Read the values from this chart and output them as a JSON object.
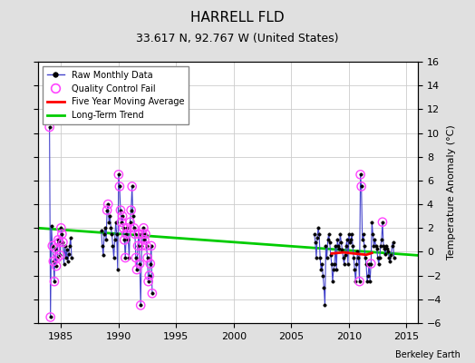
{
  "title": "HARRELL FLD",
  "subtitle": "33.617 N, 92.767 W (United States)",
  "attribution": "Berkeley Earth",
  "ylabel": "Temperature Anomaly (°C)",
  "xlim": [
    1983.0,
    2016.0
  ],
  "ylim": [
    -6,
    16
  ],
  "yticks": [
    -6,
    -4,
    -2,
    0,
    2,
    4,
    6,
    8,
    10,
    12,
    14,
    16
  ],
  "xticks": [
    1985,
    1990,
    1995,
    2000,
    2005,
    2010,
    2015
  ],
  "bg_color": "#e0e0e0",
  "plot_bg_color": "#ffffff",
  "grid_color": "#cccccc",
  "raw_color": "#4444cc",
  "qc_color": "#ff44ff",
  "ma_color": "#ff0000",
  "trend_color": "#00cc00",
  "raw_data": [
    [
      1984.0,
      10.5
    ],
    [
      1984.083,
      -5.5
    ],
    [
      1984.167,
      2.2
    ],
    [
      1984.25,
      0.5
    ],
    [
      1984.333,
      -0.8
    ],
    [
      1984.417,
      -2.5
    ],
    [
      1984.5,
      0.3
    ],
    [
      1984.583,
      -1.2
    ],
    [
      1984.667,
      -0.5
    ],
    [
      1984.75,
      1.0
    ],
    [
      1984.833,
      0.8
    ],
    [
      1984.917,
      -0.3
    ],
    [
      1985.0,
      2.0
    ],
    [
      1985.083,
      1.5
    ],
    [
      1985.167,
      0.8
    ],
    [
      1985.25,
      -1.0
    ],
    [
      1985.333,
      0.5
    ],
    [
      1985.417,
      -0.5
    ],
    [
      1985.5,
      0.2
    ],
    [
      1985.583,
      -0.8
    ],
    [
      1985.667,
      -0.2
    ],
    [
      1985.75,
      0.5
    ],
    [
      1985.833,
      1.2
    ],
    [
      1985.917,
      -0.5
    ],
    [
      1988.5,
      1.8
    ],
    [
      1988.583,
      0.5
    ],
    [
      1988.667,
      -0.3
    ],
    [
      1988.75,
      1.5
    ],
    [
      1988.833,
      2.0
    ],
    [
      1988.917,
      1.0
    ],
    [
      1989.0,
      3.5
    ],
    [
      1989.083,
      4.0
    ],
    [
      1989.167,
      2.5
    ],
    [
      1989.25,
      3.0
    ],
    [
      1989.333,
      2.0
    ],
    [
      1989.417,
      1.5
    ],
    [
      1989.5,
      0.5
    ],
    [
      1989.583,
      -0.5
    ],
    [
      1989.667,
      1.0
    ],
    [
      1989.75,
      2.5
    ],
    [
      1989.833,
      1.5
    ],
    [
      1989.917,
      -1.5
    ],
    [
      1990.0,
      6.5
    ],
    [
      1990.083,
      5.5
    ],
    [
      1990.167,
      3.5
    ],
    [
      1990.25,
      2.5
    ],
    [
      1990.333,
      3.0
    ],
    [
      1990.417,
      2.0
    ],
    [
      1990.5,
      1.0
    ],
    [
      1990.583,
      -0.5
    ],
    [
      1990.667,
      1.5
    ],
    [
      1990.75,
      2.0
    ],
    [
      1990.833,
      1.0
    ],
    [
      1990.917,
      -0.5
    ],
    [
      1991.0,
      2.5
    ],
    [
      1991.083,
      3.5
    ],
    [
      1991.167,
      5.5
    ],
    [
      1991.25,
      3.0
    ],
    [
      1991.333,
      2.0
    ],
    [
      1991.417,
      1.5
    ],
    [
      1991.5,
      -0.5
    ],
    [
      1991.583,
      -1.5
    ],
    [
      1991.667,
      0.5
    ],
    [
      1991.75,
      1.5
    ],
    [
      1991.833,
      -1.0
    ],
    [
      1991.917,
      -4.5
    ],
    [
      1992.0,
      0.5
    ],
    [
      1992.083,
      1.5
    ],
    [
      1992.167,
      2.0
    ],
    [
      1992.25,
      1.0
    ],
    [
      1992.333,
      1.5
    ],
    [
      1992.417,
      0.5
    ],
    [
      1992.5,
      -0.5
    ],
    [
      1992.583,
      -2.5
    ],
    [
      1992.667,
      -2.0
    ],
    [
      1992.75,
      -1.0
    ],
    [
      1992.833,
      0.5
    ],
    [
      1992.917,
      -3.5
    ],
    [
      2007.0,
      1.5
    ],
    [
      2007.083,
      0.8
    ],
    [
      2007.167,
      -0.5
    ],
    [
      2007.25,
      1.2
    ],
    [
      2007.333,
      2.0
    ],
    [
      2007.417,
      1.5
    ],
    [
      2007.5,
      -0.5
    ],
    [
      2007.583,
      -1.5
    ],
    [
      2007.667,
      -1.0
    ],
    [
      2007.75,
      -2.0
    ],
    [
      2007.833,
      -3.0
    ],
    [
      2007.917,
      -4.5
    ],
    [
      2008.0,
      0.5
    ],
    [
      2008.083,
      -0.5
    ],
    [
      2008.167,
      1.0
    ],
    [
      2008.25,
      1.5
    ],
    [
      2008.333,
      0.8
    ],
    [
      2008.417,
      -0.3
    ],
    [
      2008.5,
      -1.0
    ],
    [
      2008.583,
      -2.5
    ],
    [
      2008.667,
      -1.5
    ],
    [
      2008.75,
      -1.0
    ],
    [
      2008.833,
      0.5
    ],
    [
      2008.917,
      -1.5
    ],
    [
      2009.0,
      1.0
    ],
    [
      2009.083,
      0.5
    ],
    [
      2009.167,
      0.3
    ],
    [
      2009.25,
      1.5
    ],
    [
      2009.333,
      0.8
    ],
    [
      2009.417,
      0.2
    ],
    [
      2009.5,
      -0.5
    ],
    [
      2009.583,
      -1.0
    ],
    [
      2009.667,
      -0.3
    ],
    [
      2009.75,
      0.5
    ],
    [
      2009.833,
      1.0
    ],
    [
      2009.917,
      -1.0
    ],
    [
      2010.0,
      1.5
    ],
    [
      2010.083,
      0.8
    ],
    [
      2010.167,
      1.0
    ],
    [
      2010.25,
      1.5
    ],
    [
      2010.333,
      0.5
    ],
    [
      2010.417,
      -0.5
    ],
    [
      2010.5,
      -1.5
    ],
    [
      2010.583,
      -2.5
    ],
    [
      2010.667,
      -1.0
    ],
    [
      2010.75,
      0.0
    ],
    [
      2010.833,
      -0.5
    ],
    [
      2010.917,
      -2.5
    ],
    [
      2011.0,
      6.5
    ],
    [
      2011.083,
      5.5
    ],
    [
      2011.167,
      1.0
    ],
    [
      2011.25,
      1.5
    ],
    [
      2011.333,
      0.5
    ],
    [
      2011.417,
      -0.5
    ],
    [
      2011.5,
      -1.0
    ],
    [
      2011.583,
      -2.5
    ],
    [
      2011.667,
      -2.0
    ],
    [
      2011.75,
      -1.0
    ],
    [
      2011.833,
      -2.5
    ],
    [
      2011.917,
      -1.0
    ],
    [
      2012.0,
      2.5
    ],
    [
      2012.083,
      1.5
    ],
    [
      2012.167,
      0.5
    ],
    [
      2012.25,
      1.0
    ],
    [
      2012.333,
      0.5
    ],
    [
      2012.417,
      0.3
    ],
    [
      2012.5,
      -0.5
    ],
    [
      2012.583,
      -1.0
    ],
    [
      2012.667,
      -0.5
    ],
    [
      2012.75,
      0.5
    ],
    [
      2012.833,
      1.0
    ],
    [
      2012.917,
      2.5
    ],
    [
      2013.0,
      0.5
    ],
    [
      2013.083,
      0.3
    ],
    [
      2013.167,
      -0.2
    ],
    [
      2013.25,
      0.5
    ],
    [
      2013.333,
      0.3
    ],
    [
      2013.417,
      0.0
    ],
    [
      2013.5,
      -0.5
    ],
    [
      2013.583,
      -0.8
    ],
    [
      2013.667,
      -0.3
    ],
    [
      2013.75,
      0.5
    ],
    [
      2013.833,
      0.8
    ],
    [
      2013.917,
      -0.5
    ]
  ],
  "qc_fail": [
    [
      1984.0,
      10.5
    ],
    [
      1984.083,
      -5.5
    ],
    [
      1984.25,
      0.5
    ],
    [
      1984.333,
      -0.8
    ],
    [
      1984.417,
      -2.5
    ],
    [
      1984.5,
      0.3
    ],
    [
      1984.583,
      -1.2
    ],
    [
      1984.667,
      -0.5
    ],
    [
      1984.75,
      1.0
    ],
    [
      1984.833,
      0.8
    ],
    [
      1984.917,
      -0.3
    ],
    [
      1985.0,
      2.0
    ],
    [
      1985.083,
      1.5
    ],
    [
      1985.167,
      0.8
    ],
    [
      1989.0,
      3.5
    ],
    [
      1989.083,
      4.0
    ],
    [
      1990.0,
      6.5
    ],
    [
      1990.083,
      5.5
    ],
    [
      1990.167,
      3.5
    ],
    [
      1990.25,
      2.5
    ],
    [
      1990.333,
      3.0
    ],
    [
      1990.417,
      2.0
    ],
    [
      1990.5,
      1.0
    ],
    [
      1990.583,
      -0.5
    ],
    [
      1990.667,
      1.5
    ],
    [
      1990.75,
      2.0
    ],
    [
      1991.0,
      2.5
    ],
    [
      1991.083,
      3.5
    ],
    [
      1991.167,
      5.5
    ],
    [
      1991.333,
      2.0
    ],
    [
      1991.417,
      1.5
    ],
    [
      1991.5,
      -0.5
    ],
    [
      1991.583,
      -1.5
    ],
    [
      1991.667,
      0.5
    ],
    [
      1991.75,
      1.5
    ],
    [
      1991.833,
      -1.0
    ],
    [
      1991.917,
      -4.5
    ],
    [
      1992.0,
      0.5
    ],
    [
      1992.083,
      1.5
    ],
    [
      1992.167,
      2.0
    ],
    [
      1992.25,
      1.0
    ],
    [
      1992.333,
      1.5
    ],
    [
      1992.417,
      0.5
    ],
    [
      1992.5,
      -0.5
    ],
    [
      1992.583,
      -2.5
    ],
    [
      1992.667,
      -2.0
    ],
    [
      1992.75,
      -1.0
    ],
    [
      1992.833,
      0.5
    ],
    [
      1992.917,
      -3.5
    ],
    [
      2010.917,
      -2.5
    ],
    [
      2011.0,
      6.5
    ],
    [
      2011.083,
      5.5
    ],
    [
      2011.917,
      -1.0
    ],
    [
      2012.917,
      2.5
    ]
  ],
  "moving_avg": [
    [
      2008.5,
      -0.15
    ],
    [
      2009.0,
      -0.1
    ],
    [
      2009.5,
      -0.05
    ],
    [
      2010.0,
      -0.1
    ],
    [
      2010.5,
      -0.15
    ],
    [
      2011.0,
      -0.2
    ],
    [
      2011.5,
      -0.25
    ],
    [
      2012.0,
      -0.1
    ]
  ],
  "trend_x": [
    1983.0,
    2016.0
  ],
  "trend_y": [
    2.0,
    -0.3
  ]
}
